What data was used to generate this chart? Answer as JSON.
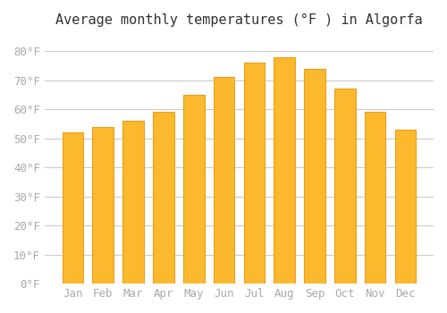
{
  "title": "Average monthly temperatures (°F ) in Algorfa",
  "months": [
    "Jan",
    "Feb",
    "Mar",
    "Apr",
    "May",
    "Jun",
    "Jul",
    "Aug",
    "Sep",
    "Oct",
    "Nov",
    "Dec"
  ],
  "values": [
    52,
    54,
    56,
    59,
    65,
    71,
    76,
    78,
    74,
    67,
    59,
    53
  ],
  "bar_color": "#FDB92E",
  "bar_edge_color": "#E8A020",
  "background_color": "#FFFFFF",
  "grid_color": "#CCCCCC",
  "ylim": [
    0,
    85
  ],
  "yticks": [
    0,
    10,
    20,
    30,
    40,
    50,
    60,
    70,
    80
  ],
  "title_fontsize": 11,
  "tick_fontsize": 9,
  "tick_color": "#AAAAAA"
}
